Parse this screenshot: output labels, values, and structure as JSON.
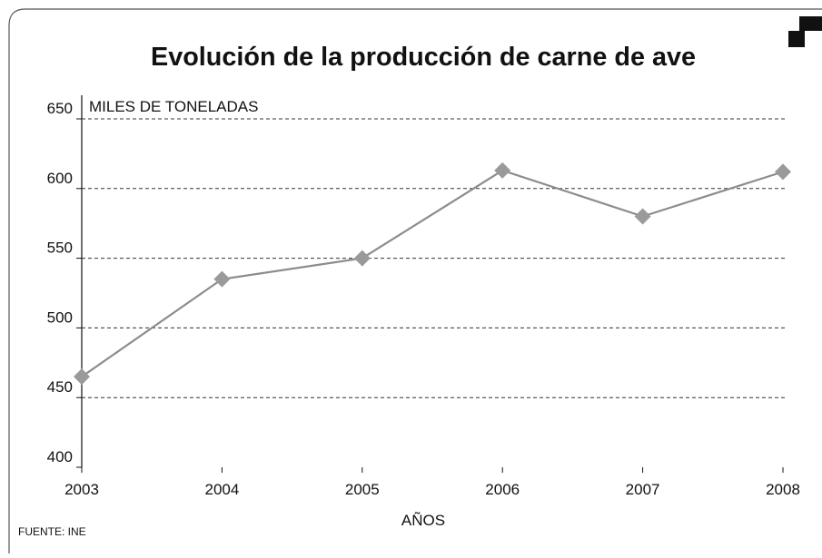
{
  "chart_data": {
    "type": "line",
    "title": "Evolución de la producción de carne de ave",
    "y_label": "MILES DE TONELADAS",
    "x_label": "AÑOS",
    "source": "FUENTE: INE",
    "categories": [
      "2003",
      "2004",
      "2005",
      "2006",
      "2007",
      "2008"
    ],
    "values": [
      465,
      535,
      550,
      613,
      580,
      612
    ],
    "color": "#8c8c8c",
    "marker_color": "#9a9a9a",
    "ylim": [
      400,
      650
    ],
    "yticks": [
      400,
      450,
      500,
      550,
      600,
      650
    ],
    "grid": true
  }
}
